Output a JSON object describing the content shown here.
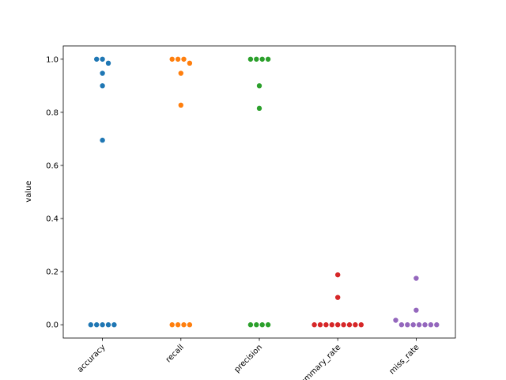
{
  "chart_data": {
    "type": "scatter",
    "style": "swarm",
    "title": "",
    "xlabel": "",
    "ylabel": "value",
    "ylim": [
      -0.05,
      1.05
    ],
    "yticks": [
      "0.0",
      "0.2",
      "0.4",
      "0.6",
      "0.8",
      "1.0"
    ],
    "categories": [
      "accuracy",
      "recall",
      "precision",
      "summary_rate",
      "miss_rate"
    ],
    "colors": [
      "#1f77b4",
      "#ff7f0e",
      "#2ca02c",
      "#d62728",
      "#9467bd"
    ],
    "series": [
      {
        "values": [
          1.0,
          1.0,
          0.985,
          0.947,
          0.9,
          0.695,
          0.0,
          0.0,
          0.0,
          0.0,
          0.0
        ]
      },
      {
        "values": [
          1.0,
          1.0,
          1.0,
          0.985,
          0.947,
          0.827,
          0.0,
          0.0,
          0.0,
          0.0
        ]
      },
      {
        "values": [
          1.0,
          1.0,
          1.0,
          1.0,
          0.9,
          0.815,
          0.0,
          0.0,
          0.0,
          0.0
        ]
      },
      {
        "values": [
          0.188,
          0.103,
          0.0,
          0.0,
          0.0,
          0.0,
          0.0,
          0.0,
          0.0,
          0.0,
          0.0
        ]
      },
      {
        "values": [
          0.175,
          0.055,
          0.017,
          0.0,
          0.0,
          0.0,
          0.0,
          0.0,
          0.0,
          0.0
        ]
      }
    ]
  }
}
